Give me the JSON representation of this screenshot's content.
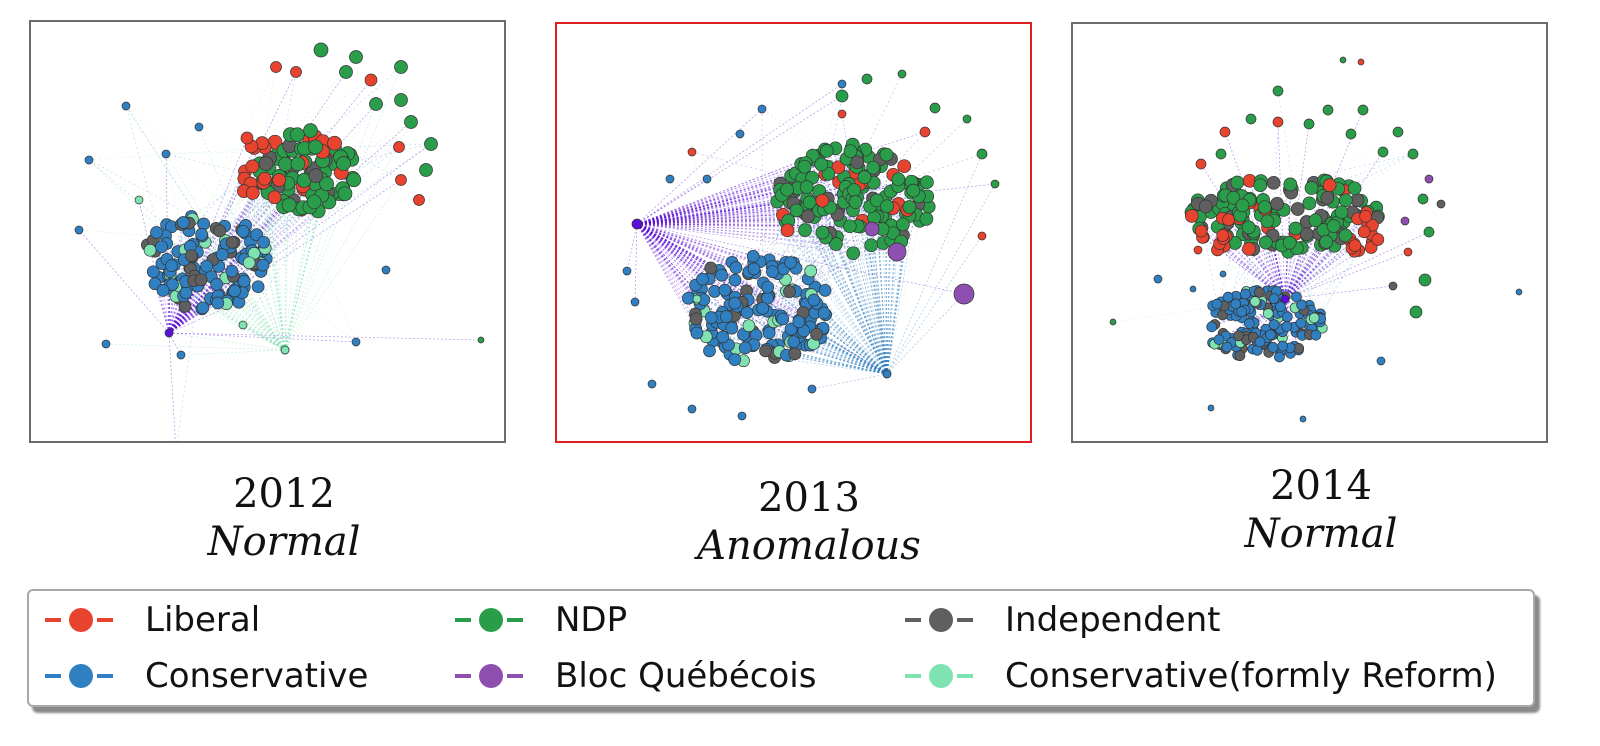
{
  "panels": [
    {
      "id": "p2012",
      "year": "2012",
      "status": "Normal"
    },
    {
      "id": "p2013",
      "year": "2013",
      "status": "Anomalous"
    },
    {
      "id": "p2014",
      "year": "2014",
      "status": "Normal"
    }
  ],
  "legend": [
    {
      "label": "Liberal",
      "color": "#e8432e"
    },
    {
      "label": "NDP",
      "color": "#2a9d4a"
    },
    {
      "label": "Independent",
      "color": "#5f5f5f"
    },
    {
      "label": "Conservative",
      "color": "#2f7fc1"
    },
    {
      "label": "Bloc Québécois",
      "color": "#8e4fb0"
    },
    {
      "label": "Conservative(formly Reform)",
      "color": "#7ee3b0"
    }
  ],
  "colors": {
    "liberal": "#e8432e",
    "ndp": "#2a9d4a",
    "independent": "#5f5f5f",
    "conservative": "#2f7fc1",
    "bloc": "#8e4fb0",
    "reform": "#7ee3b0",
    "hub": "#5a10d8",
    "anomaly_border": "#e02020",
    "normal_border": "#6b6b6b"
  }
}
